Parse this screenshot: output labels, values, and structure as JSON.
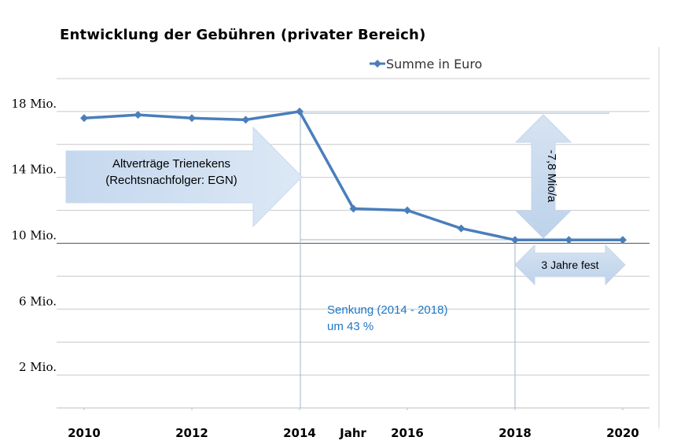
{
  "chart_data": {
    "type": "line",
    "title": "Entwicklung der Gebühren (privater Bereich)",
    "xlabel": "Jahr",
    "ylabel": "",
    "x_ticks": [
      "2010",
      "2012",
      "2014",
      "2016",
      "2018",
      "2020"
    ],
    "y_ticks": [
      "2 Mio.",
      "6 Mio.",
      "10 Mio.",
      "14 Mio.",
      "18 Mio."
    ],
    "y_tick_values": [
      2,
      6,
      10,
      14,
      18
    ],
    "xlim": [
      2010,
      2020
    ],
    "ylim": [
      0,
      20
    ],
    "grid": true,
    "legend_position": "top-right",
    "series": [
      {
        "name": "Summe in Euro",
        "color": "#4a7ebb",
        "x": [
          2010,
          2011,
          2012,
          2013,
          2014,
          2015,
          2016,
          2017,
          2018,
          2019,
          2020
        ],
        "values": [
          17.6,
          17.8,
          17.6,
          17.5,
          18.0,
          12.1,
          12.0,
          10.9,
          10.2,
          10.2,
          10.2
        ]
      }
    ],
    "annotations": {
      "arrow_left": [
        "Altverträge Trienekens",
        "(Rechtsnachfolger: EGN)"
      ],
      "vertical_arrow": "-7,8 Mio/a",
      "horizontal_arrow": "3 Jahre fest",
      "note": [
        "Senkung (2014 - 2018)",
        "um 43 %"
      ]
    }
  }
}
